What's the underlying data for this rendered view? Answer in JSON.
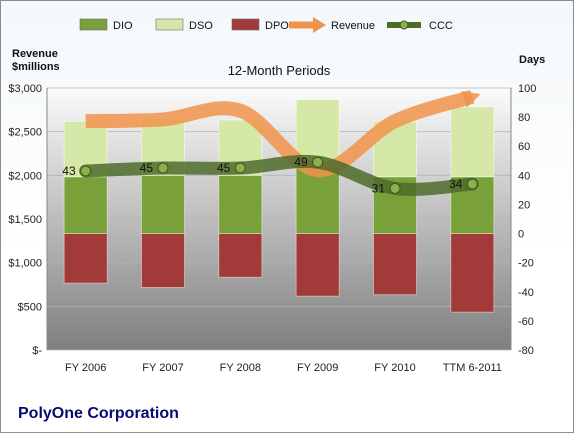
{
  "chart_data": {
    "type": "bar",
    "title": "12-Month Periods",
    "company": "PolyOne Corporation",
    "left_axis": {
      "label_line1": "Revenue",
      "label_line2": "$millions",
      "ylim": [
        0,
        3000
      ],
      "ticks": [
        0,
        500,
        1000,
        1500,
        2000,
        2500,
        3000
      ],
      "tick_labels": [
        "$-",
        "$500",
        "$1,000",
        "$1,500",
        "$2,000",
        "$2,500",
        "$3,000"
      ]
    },
    "right_axis": {
      "label": "Days",
      "ylim": [
        -80,
        100
      ],
      "ticks": [
        -80,
        -60,
        -40,
        -20,
        0,
        20,
        40,
        60,
        80,
        100
      ],
      "tick_labels": [
        "-80",
        "-60",
        "-40",
        "-20",
        "0",
        "20",
        "40",
        "60",
        "80",
        "100"
      ]
    },
    "categories": [
      "FY 2006",
      "FY 2007",
      "FY 2008",
      "FY 2009",
      "FY 2010",
      "TTM 6-2011"
    ],
    "legend": {
      "position": "top",
      "items": [
        {
          "name": "DIO",
          "kind": "bar",
          "color": "#7aa03a"
        },
        {
          "name": "DSO",
          "kind": "bar",
          "color": "#d6e8a8"
        },
        {
          "name": "DPO",
          "kind": "bar",
          "color": "#a33a3a"
        },
        {
          "name": "Revenue",
          "kind": "arrow",
          "color": "#f0934a"
        },
        {
          "name": "CCC",
          "kind": "line",
          "color": "#4f6b2b"
        }
      ]
    },
    "series": [
      {
        "name": "DIO",
        "axis": "right",
        "color": "#7aa03a",
        "values": [
          39,
          40,
          40,
          46,
          39,
          39
        ]
      },
      {
        "name": "DSO",
        "axis": "right",
        "color": "#d6e8a8",
        "values": [
          38,
          39,
          38,
          46,
          38,
          48
        ]
      },
      {
        "name": "DPO",
        "axis": "right",
        "color": "#a33a3a",
        "values": [
          -34,
          -37,
          -30,
          -43,
          -42,
          -54
        ]
      },
      {
        "name": "Revenue",
        "axis": "left",
        "color": "#f0934a",
        "values": [
          2620,
          2640,
          2740,
          2060,
          2620,
          2900
        ]
      },
      {
        "name": "CCC",
        "axis": "right",
        "color": "#4f6b2b",
        "values": [
          43,
          45,
          45,
          49,
          31,
          34
        ],
        "labels": [
          "43",
          "45",
          "45",
          "49",
          "31",
          "34"
        ]
      }
    ]
  }
}
